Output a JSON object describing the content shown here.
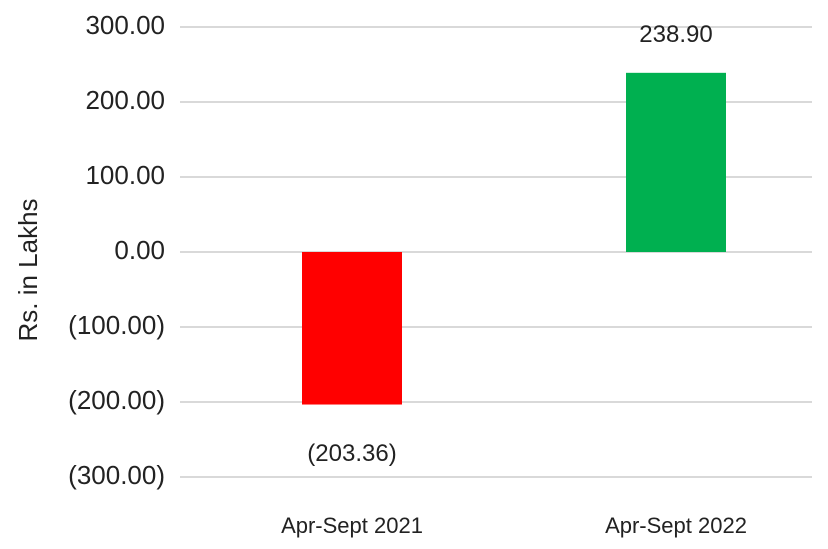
{
  "chart_data": {
    "type": "bar",
    "y_label": "Rs. in Lakhs",
    "categories": [
      "Apr-Sept 2021",
      "Apr-Sept 2022"
    ],
    "values": [
      -203.36,
      238.9
    ],
    "value_labels": [
      "(203.36)",
      "238.90"
    ],
    "colors": [
      "#ff0000",
      "#00b050"
    ],
    "ylim": [
      -300,
      300
    ],
    "yticks": [
      {
        "value": -300,
        "label": "(300.00)"
      },
      {
        "value": -200,
        "label": "(200.00)"
      },
      {
        "value": -100,
        "label": "(100.00)"
      },
      {
        "value": 0,
        "label": "0.00"
      },
      {
        "value": 100,
        "label": "100.00"
      },
      {
        "value": 200,
        "label": "200.00"
      },
      {
        "value": 300,
        "label": "300.00"
      }
    ],
    "grid": true
  }
}
